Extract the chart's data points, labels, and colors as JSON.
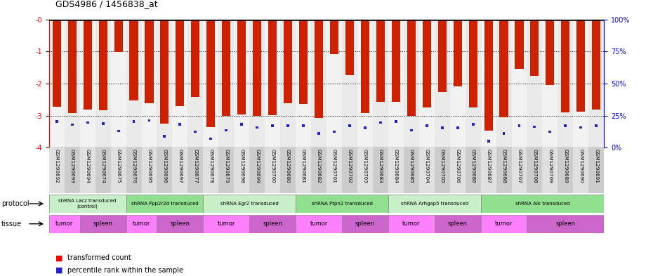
{
  "title": "GDS4986 / 1456838_at",
  "samples": [
    "GSM1290692",
    "GSM1290693",
    "GSM1290694",
    "GSM1290674",
    "GSM1290675",
    "GSM1290676",
    "GSM1290695",
    "GSM1290696",
    "GSM1290697",
    "GSM1290677",
    "GSM1290678",
    "GSM1290679",
    "GSM1290698",
    "GSM1290699",
    "GSM1290700",
    "GSM1290680",
    "GSM1290681",
    "GSM1290682",
    "GSM1290701",
    "GSM1290702",
    "GSM1290703",
    "GSM1290683",
    "GSM1290684",
    "GSM1290685",
    "GSM1290704",
    "GSM1290705",
    "GSM1290706",
    "GSM1290686",
    "GSM1290687",
    "GSM1290688",
    "GSM1290707",
    "GSM1290708",
    "GSM1290709",
    "GSM1290689",
    "GSM1290690",
    "GSM1290691"
  ],
  "red_values": [
    -2.72,
    -2.93,
    -2.82,
    -2.83,
    -1.02,
    -2.53,
    -2.62,
    -3.26,
    -2.71,
    -2.42,
    -3.37,
    -3.02,
    -2.97,
    -3.0,
    -2.98,
    -2.62,
    -2.63,
    -3.08,
    -1.08,
    -1.75,
    -2.92,
    -2.58,
    -2.58,
    -3.01,
    -2.74,
    -2.26,
    -2.1,
    -2.74,
    -3.46,
    -3.05,
    -1.55,
    -1.77,
    -2.05,
    -2.91,
    -2.88,
    -2.82
  ],
  "blue_positions": [
    -3.18,
    -3.28,
    -3.22,
    -3.25,
    -3.48,
    -3.18,
    -3.15,
    -3.65,
    -3.27,
    -3.5,
    -3.72,
    -3.46,
    -3.27,
    -3.37,
    -3.32,
    -3.32,
    -3.32,
    -3.55,
    -3.5,
    -3.32,
    -3.38,
    -3.22,
    -3.18,
    -3.46,
    -3.32,
    -3.38,
    -3.38,
    -3.27,
    -3.8,
    -3.55,
    -3.32,
    -3.35,
    -3.5,
    -3.32,
    -3.37,
    -3.32
  ],
  "protocols": [
    {
      "label": "shRNA Lacz transduced\n(control)",
      "start": 0,
      "end": 5,
      "color": "#c8f0c8"
    },
    {
      "label": "shRNA Ppp2r2d transduced",
      "start": 5,
      "end": 10,
      "color": "#90e090"
    },
    {
      "label": "shRNA Egr2 transduced",
      "start": 10,
      "end": 16,
      "color": "#c8f0c8"
    },
    {
      "label": "shRNA Ptpn2 transduced",
      "start": 16,
      "end": 22,
      "color": "#90e090"
    },
    {
      "label": "shRNA Arhgap5 transduced",
      "start": 22,
      "end": 28,
      "color": "#c8f0c8"
    },
    {
      "label": "shRNA Alk transduced",
      "start": 28,
      "end": 36,
      "color": "#90e090"
    }
  ],
  "tissues": [
    {
      "label": "tumor",
      "start": 0,
      "end": 2,
      "color": "#ff80ff"
    },
    {
      "label": "spleen",
      "start": 2,
      "end": 5,
      "color": "#cc66cc"
    },
    {
      "label": "tumor",
      "start": 5,
      "end": 7,
      "color": "#ff80ff"
    },
    {
      "label": "spleen",
      "start": 7,
      "end": 10,
      "color": "#cc66cc"
    },
    {
      "label": "tumor",
      "start": 10,
      "end": 13,
      "color": "#ff80ff"
    },
    {
      "label": "spleen",
      "start": 13,
      "end": 16,
      "color": "#cc66cc"
    },
    {
      "label": "tumor",
      "start": 16,
      "end": 19,
      "color": "#ff80ff"
    },
    {
      "label": "spleen",
      "start": 19,
      "end": 22,
      "color": "#cc66cc"
    },
    {
      "label": "tumor",
      "start": 22,
      "end": 25,
      "color": "#ff80ff"
    },
    {
      "label": "spleen",
      "start": 25,
      "end": 28,
      "color": "#cc66cc"
    },
    {
      "label": "tumor",
      "start": 28,
      "end": 31,
      "color": "#ff80ff"
    },
    {
      "label": "spleen",
      "start": 31,
      "end": 36,
      "color": "#cc66cc"
    }
  ],
  "ylim_left": [
    -4,
    0
  ],
  "ylim_right": [
    0,
    100
  ],
  "yticks_left": [
    -4,
    -3,
    -2,
    -1,
    0
  ],
  "ytick_labels_left": [
    "-4",
    "-3",
    "-2",
    "-1",
    "-0"
  ],
  "yticks_right": [
    0,
    25,
    50,
    75,
    100
  ],
  "ytick_labels_right": [
    "0%",
    "25%",
    "50%",
    "75%",
    "100%"
  ],
  "bar_color": "#cc2200",
  "blue_color": "#2222cc",
  "col_colors_even": "#e0e0e0",
  "col_colors_odd": "#cccccc",
  "chart_bg": "#f0f0f0"
}
